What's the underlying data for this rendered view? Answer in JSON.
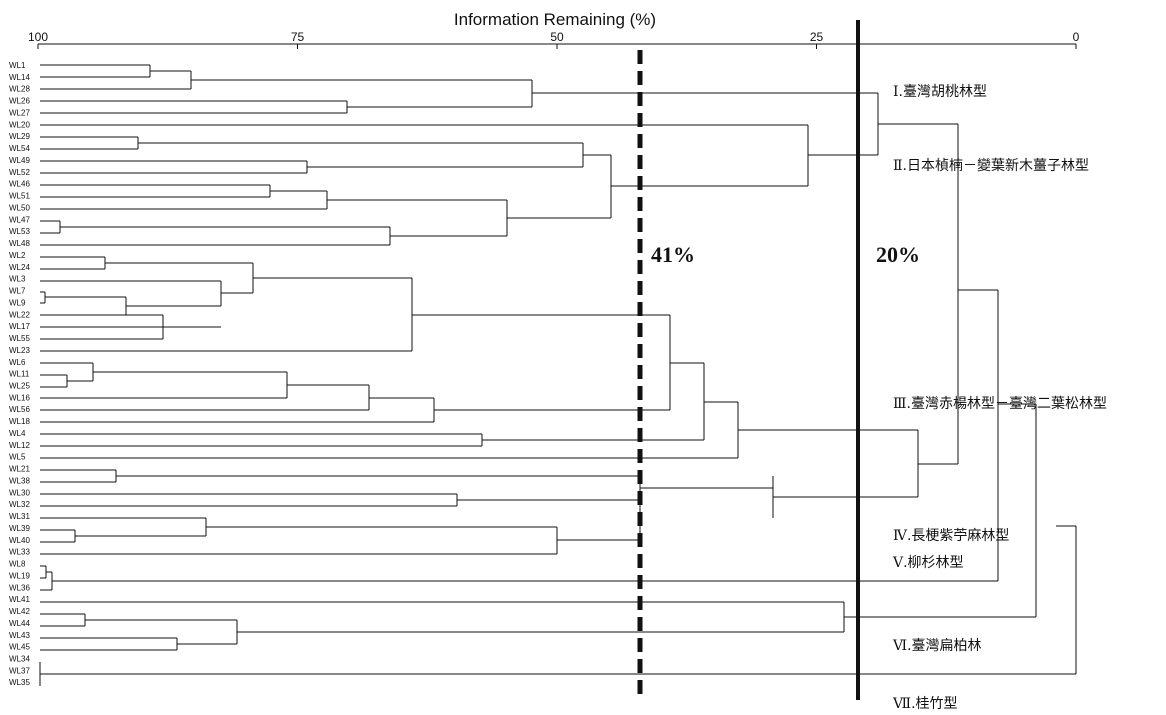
{
  "axis": {
    "title": "Information Remaining (%)",
    "ticks": [
      "100",
      "75",
      "50",
      "25",
      "0"
    ]
  },
  "leaves": [
    "WL1",
    "WL14",
    "WL28",
    "WL26",
    "WL27",
    "WL20",
    "WL29",
    "WL54",
    "WL49",
    "WL52",
    "WL46",
    "WL51",
    "WL50",
    "WL47",
    "WL53",
    "WL48",
    "WL2",
    "WL24",
    "WL3",
    "WL7",
    "WL9",
    "WL22",
    "WL17",
    "WL55",
    "WL23",
    "WL6",
    "WL11",
    "WL25",
    "WL16",
    "WL56",
    "WL18",
    "WL4",
    "WL12",
    "WL5",
    "WL21",
    "WL38",
    "WL30",
    "WL32",
    "WL31",
    "WL39",
    "WL40",
    "WL33",
    "WL8",
    "WL19",
    "WL36",
    "WL41",
    "WL42",
    "WL44",
    "WL43",
    "WL45",
    "WL34",
    "WL37",
    "WL35"
  ],
  "cut_lines": {
    "dashed_label": "41%",
    "dashed_value": 41,
    "solid_label": "20%",
    "solid_value": 20
  },
  "groups": [
    "Ⅰ.臺灣胡桃林型",
    "Ⅱ.日本楨楠－變葉新木薑子林型",
    "Ⅲ.臺灣赤楊林型－臺灣二葉松林型",
    "Ⅳ.長梗紫苧麻林型",
    "Ⅴ.柳杉林型",
    "Ⅵ.臺灣扁柏林",
    "Ⅶ.桂竹型"
  ],
  "colors": {
    "ink": "#111111",
    "background": "#ffffff"
  }
}
